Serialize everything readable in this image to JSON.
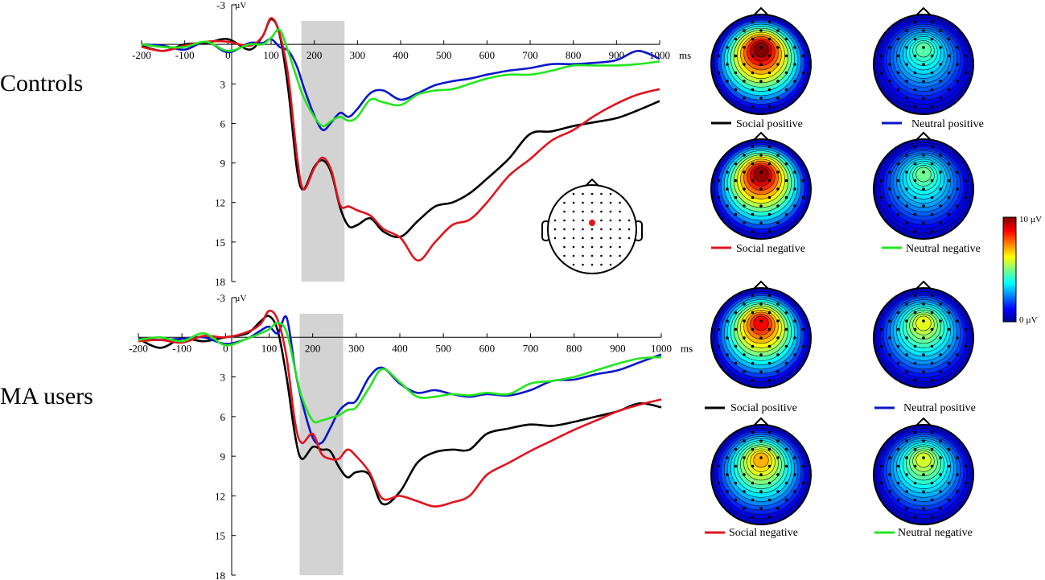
{
  "groups": [
    "Controls",
    "MA users"
  ],
  "colorbar": {
    "max_label": "10 µV",
    "min_label": "0 µV",
    "min_value": 0,
    "max_value": 10
  },
  "colors": {
    "social_positive": "#000000",
    "neutral_positive": "#0a16c8",
    "social_negative": "#e0141e",
    "neutral_negative": "#23e61e",
    "shade": "#d3d3d3"
  },
  "legend": {
    "social_positive": "Social positive",
    "neutral_positive": "Neutral positive",
    "social_negative": "Social negative",
    "neutral_negative": "Neutral negative"
  },
  "topo_maps": {
    "controls": [
      {
        "condition": "Social positive",
        "level": 10
      },
      {
        "condition": "Neutral positive",
        "level": 4.6
      },
      {
        "condition": "Social negative",
        "level": 9.8
      },
      {
        "condition": "Neutral negative",
        "level": 4.8
      }
    ],
    "ma_users": [
      {
        "condition": "Social positive",
        "level": 8.8
      },
      {
        "condition": "Neutral positive",
        "level": 6.0
      },
      {
        "condition": "Social negative",
        "level": 7.0
      },
      {
        "condition": "Neutral negative",
        "level": 5.8
      }
    ]
  },
  "chart_data": [
    {
      "type": "line",
      "title": "Controls",
      "xlabel": "ms",
      "ylabel": "µV",
      "xlim": [
        -200,
        1000
      ],
      "ylim": [
        -3,
        18
      ],
      "y_inverted": true,
      "xticks": [
        -200,
        -100,
        0,
        100,
        200,
        300,
        400,
        500,
        600,
        700,
        800,
        900,
        1000
      ],
      "yticks": [
        -3,
        3,
        6,
        9,
        12,
        15,
        18
      ],
      "shaded_window": [
        170,
        270
      ],
      "x": [
        -200,
        -150,
        -100,
        -50,
        0,
        50,
        80,
        100,
        120,
        140,
        160,
        175,
        200,
        220,
        240,
        260,
        280,
        300,
        330,
        360,
        400,
        440,
        480,
        520,
        560,
        600,
        650,
        700,
        750,
        800,
        850,
        900,
        950,
        1000
      ],
      "series": [
        {
          "name": "Social positive",
          "values": [
            0.1,
            0.5,
            0.0,
            -0.1,
            -0.4,
            0.4,
            -0.6,
            -1.9,
            -0.7,
            3.5,
            9.5,
            11.0,
            9.3,
            8.8,
            9.8,
            12.4,
            13.8,
            13.7,
            13.2,
            14.2,
            14.6,
            13.4,
            12.3,
            12.0,
            11.3,
            10.2,
            8.7,
            6.8,
            6.6,
            6.2,
            5.9,
            5.6,
            5.0,
            4.3
          ]
        },
        {
          "name": "Neutral positive",
          "values": [
            0.0,
            0.1,
            0.4,
            -0.2,
            0.6,
            -0.1,
            -0.1,
            -0.4,
            0.2,
            0.5,
            1.7,
            3.2,
            5.4,
            6.5,
            5.9,
            5.2,
            5.5,
            4.9,
            3.7,
            3.5,
            4.2,
            3.7,
            3.1,
            2.8,
            2.6,
            2.3,
            2.0,
            1.8,
            1.5,
            1.5,
            1.4,
            1.2,
            0.5,
            1.1
          ]
        },
        {
          "name": "Social negative",
          "values": [
            0.2,
            0.5,
            0.1,
            -0.2,
            -0.2,
            0.1,
            -0.6,
            -2.0,
            -0.8,
            2.5,
            8.5,
            11.0,
            9.4,
            8.6,
            9.6,
            12.2,
            12.3,
            12.6,
            13.0,
            14.0,
            14.7,
            16.4,
            15.0,
            13.7,
            13.3,
            12.0,
            10.0,
            8.7,
            7.3,
            6.5,
            5.4,
            4.5,
            3.8,
            3.4
          ]
        },
        {
          "name": "Neutral negative",
          "values": [
            0.0,
            0.2,
            0.2,
            -0.2,
            0.5,
            0.0,
            0.0,
            -0.5,
            -1.1,
            0.6,
            2.6,
            4.0,
            5.5,
            6.2,
            5.8,
            5.5,
            5.8,
            5.5,
            4.2,
            4.4,
            4.6,
            3.8,
            3.5,
            3.4,
            3.0,
            2.6,
            2.3,
            2.3,
            2.0,
            1.6,
            1.6,
            1.6,
            1.5,
            1.3
          ]
        }
      ]
    },
    {
      "type": "line",
      "title": "MA users",
      "xlabel": "ms",
      "ylabel": "µV",
      "xlim": [
        -200,
        1000
      ],
      "ylim": [
        -3,
        18
      ],
      "y_inverted": true,
      "xticks": [
        -200,
        -100,
        0,
        100,
        200,
        300,
        400,
        500,
        600,
        700,
        800,
        900,
        1000
      ],
      "yticks": [
        -3,
        3,
        6,
        9,
        12,
        15,
        18
      ],
      "shaded_window": [
        170,
        270
      ],
      "x": [
        -200,
        -150,
        -100,
        -50,
        0,
        50,
        80,
        100,
        120,
        140,
        160,
        175,
        200,
        220,
        240,
        260,
        280,
        300,
        330,
        360,
        400,
        440,
        480,
        520,
        560,
        600,
        650,
        700,
        750,
        800,
        850,
        900,
        950,
        1000
      ],
      "series": [
        {
          "name": "Social positive",
          "values": [
            0.1,
            0.8,
            0.1,
            0.3,
            0.0,
            -0.3,
            -1.2,
            -1.6,
            -0.5,
            3.0,
            7.5,
            9.2,
            8.3,
            8.5,
            8.6,
            9.8,
            10.6,
            10.2,
            10.4,
            12.6,
            11.7,
            9.5,
            8.7,
            8.5,
            8.5,
            7.3,
            6.9,
            6.6,
            6.7,
            6.4,
            6.0,
            5.6,
            5.0,
            5.3
          ]
        },
        {
          "name": "Neutral positive",
          "values": [
            0.1,
            0.2,
            0.1,
            0.0,
            0.5,
            0.1,
            -0.5,
            -0.8,
            -0.3,
            -1.5,
            2.5,
            4.8,
            7.6,
            8.0,
            6.9,
            5.6,
            5.0,
            4.8,
            3.0,
            2.3,
            3.5,
            4.2,
            4.0,
            4.3,
            4.5,
            4.3,
            4.4,
            4.0,
            3.3,
            3.2,
            2.8,
            2.5,
            1.9,
            1.3
          ]
        },
        {
          "name": "Social negative",
          "values": [
            0.3,
            0.2,
            0.4,
            -0.1,
            0.0,
            -0.4,
            -1.0,
            -2.0,
            -1.3,
            1.5,
            6.5,
            8.0,
            7.3,
            8.8,
            9.2,
            9.2,
            8.5,
            9.0,
            10.2,
            12.2,
            12.0,
            12.4,
            12.8,
            12.5,
            12.0,
            10.4,
            9.5,
            8.6,
            7.8,
            7.0,
            6.3,
            5.6,
            5.1,
            4.7
          ]
        },
        {
          "name": "Neutral negative",
          "values": [
            0.2,
            0.0,
            0.3,
            -0.3,
            0.6,
            0.1,
            -0.3,
            -0.6,
            -1.1,
            -0.4,
            2.5,
            4.5,
            6.3,
            6.3,
            6.1,
            5.9,
            5.5,
            5.3,
            3.8,
            2.4,
            3.4,
            4.5,
            4.5,
            4.3,
            4.4,
            4.2,
            4.3,
            3.5,
            3.3,
            3.0,
            2.5,
            2.0,
            1.6,
            1.5
          ]
        }
      ]
    }
  ]
}
